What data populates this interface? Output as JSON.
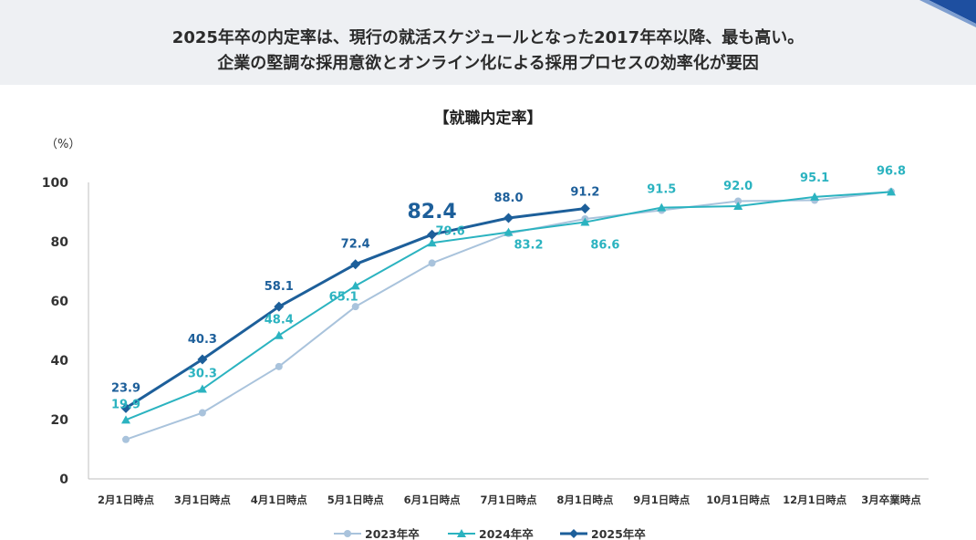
{
  "headline": {
    "line1": "2025年卒の内定率は、現行の就活スケジュールとなった2017年卒以降、最も高い。",
    "line2": "企業の堅調な採用意欲とオンライン化による採用プロセスの効率化が要因"
  },
  "colors": {
    "s2023": "#a9c3dc",
    "s2024": "#2bb3c0",
    "s2025": "#1d5f9a",
    "axis": "#bfbfbf",
    "text": "#333333",
    "banner": "#eef0f3",
    "accent": "#1e4fa0"
  },
  "chart_data": {
    "type": "line",
    "title": "【就職内定率】",
    "ylabel": "（%）",
    "xlabel": "",
    "ylim": [
      0,
      100
    ],
    "yticks": [
      0,
      20,
      40,
      60,
      80,
      100
    ],
    "grid": false,
    "legend": "bottom",
    "categories": [
      "2月1日時点",
      "3月1日時点",
      "4月1日時点",
      "5月1日時点",
      "6月1日時点",
      "7月1日時点",
      "8月1日時点",
      "9月1日時点",
      "10月1日時点",
      "12月1日時点",
      "3月卒業時点"
    ],
    "series": [
      {
        "name": "2023年卒",
        "marker": "circle",
        "values": [
          13.3,
          22.3,
          37.9,
          58.1,
          72.8,
          82.8,
          87.7,
          90.6,
          93.7,
          94.0,
          96.9
        ]
      },
      {
        "name": "2024年卒",
        "marker": "triangle",
        "values": [
          19.9,
          30.3,
          48.4,
          65.1,
          79.6,
          83.2,
          86.6,
          91.5,
          92.0,
          95.1,
          96.8
        ]
      },
      {
        "name": "2025年卒",
        "marker": "diamond",
        "values": [
          23.9,
          40.3,
          58.1,
          72.4,
          82.4,
          88.0,
          91.2,
          null,
          null,
          null,
          null
        ]
      }
    ],
    "data_labels": [
      {
        "series": 2,
        "index": 0,
        "text": "23.9"
      },
      {
        "series": 1,
        "index": 0,
        "text": "19.9"
      },
      {
        "series": 2,
        "index": 1,
        "text": "40.3"
      },
      {
        "series": 1,
        "index": 1,
        "text": "30.3"
      },
      {
        "series": 2,
        "index": 2,
        "text": "58.1"
      },
      {
        "series": 1,
        "index": 2,
        "text": "48.4"
      },
      {
        "series": 2,
        "index": 3,
        "text": "72.4"
      },
      {
        "series": 1,
        "index": 3,
        "text": "65.1"
      },
      {
        "series": 2,
        "index": 4,
        "text": "82.4",
        "emphasis": true
      },
      {
        "series": 1,
        "index": 4,
        "text": "79.6"
      },
      {
        "series": 2,
        "index": 5,
        "text": "88.0"
      },
      {
        "series": 1,
        "index": 5,
        "text": "83.2"
      },
      {
        "series": 2,
        "index": 6,
        "text": "91.2"
      },
      {
        "series": 1,
        "index": 6,
        "text": "86.6"
      },
      {
        "series": 1,
        "index": 7,
        "text": "91.5"
      },
      {
        "series": 1,
        "index": 8,
        "text": "92.0"
      },
      {
        "series": 1,
        "index": 9,
        "text": "95.1"
      },
      {
        "series": 1,
        "index": 10,
        "text": "96.8"
      }
    ]
  }
}
